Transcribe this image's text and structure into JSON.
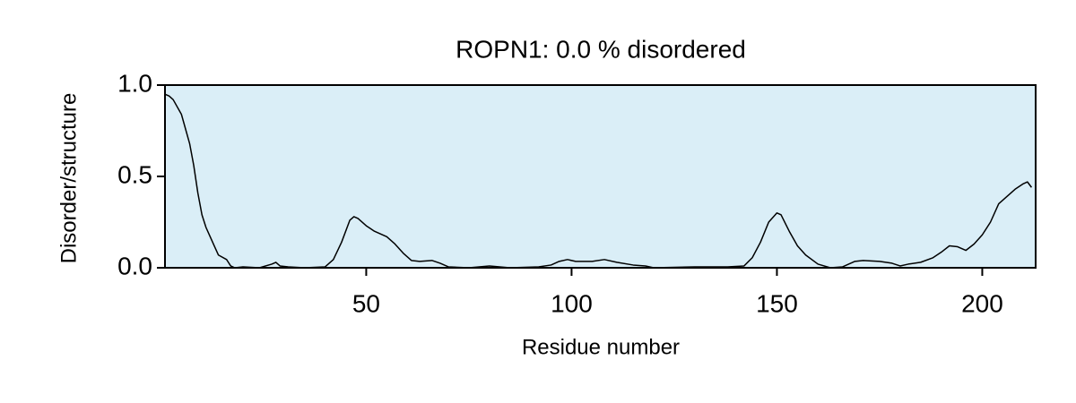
{
  "chart_data": {
    "type": "line",
    "title": "ROPN1: 0.0 % disordered",
    "x_label": "Residue number",
    "y_label": "Disorder/structure",
    "plot_background": "#daeef7",
    "series": [
      {
        "color": "#000000",
        "x": [
          1,
          2,
          3,
          5,
          7,
          8,
          9,
          10,
          11,
          12,
          13,
          14,
          16,
          17,
          18,
          20,
          24,
          27,
          28,
          29,
          31,
          35,
          40,
          42,
          44,
          46,
          47,
          48,
          50,
          52,
          55,
          57,
          59,
          61,
          63,
          66,
          68,
          70,
          75,
          80,
          85,
          92,
          95,
          97,
          99,
          101,
          105,
          108,
          111,
          115,
          118,
          120,
          130,
          138,
          142,
          144,
          146,
          148,
          150,
          151,
          153,
          155,
          157,
          160,
          163,
          166,
          169,
          171,
          175,
          178,
          180,
          182,
          185,
          188,
          190,
          192,
          194,
          196,
          198,
          200,
          202,
          204,
          206,
          208,
          210,
          211,
          212
        ],
        "values": [
          0.95,
          0.94,
          0.92,
          0.84,
          0.68,
          0.56,
          0.41,
          0.29,
          0.22,
          0.17,
          0.12,
          0.07,
          0.045,
          0.01,
          0,
          0.005,
          0,
          0.02,
          0.03,
          0.01,
          0.005,
          0,
          0.005,
          0.045,
          0.14,
          0.26,
          0.28,
          0.27,
          0.23,
          0.2,
          0.17,
          0.13,
          0.08,
          0.04,
          0.035,
          0.04,
          0.025,
          0.005,
          0,
          0.01,
          0,
          0.005,
          0.015,
          0.035,
          0.045,
          0.035,
          0.035,
          0.045,
          0.03,
          0.015,
          0.01,
          0,
          0.005,
          0.005,
          0.01,
          0.055,
          0.14,
          0.25,
          0.3,
          0.29,
          0.2,
          0.12,
          0.07,
          0.02,
          0,
          0.005,
          0.035,
          0.04,
          0.035,
          0.025,
          0.01,
          0.02,
          0.03,
          0.055,
          0.085,
          0.12,
          0.115,
          0.095,
          0.13,
          0.18,
          0.25,
          0.35,
          0.39,
          0.43,
          0.46,
          0.47,
          0.44
        ]
      }
    ],
    "xlim": [
      1,
      213
    ],
    "xticks": [
      50,
      100,
      150,
      200
    ],
    "ylim": [
      0,
      1
    ],
    "yticks": [
      {
        "value": 0,
        "label": "0.0"
      },
      0.5,
      {
        "value": 1,
        "label": "1.0"
      }
    ]
  }
}
